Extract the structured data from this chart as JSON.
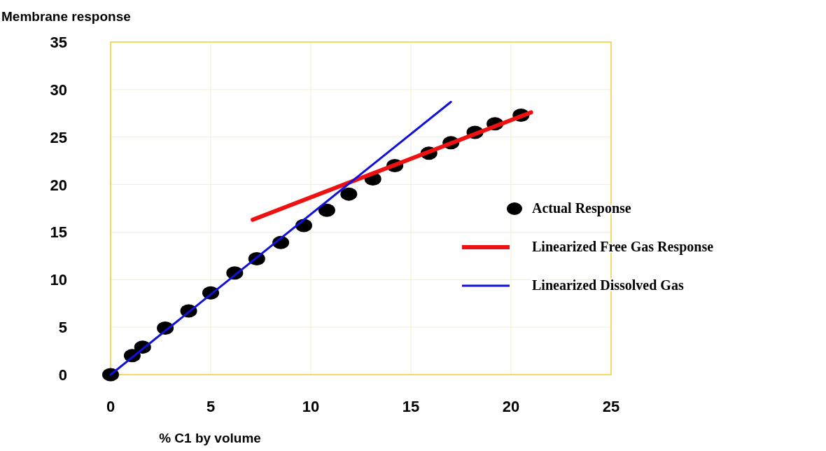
{
  "chart_data": {
    "type": "scatter",
    "ylabel": "Membrane response",
    "xlabel": "% C1 by volume",
    "xlim": [
      0,
      25
    ],
    "xticks": [
      0,
      5,
      10,
      15,
      20,
      25
    ],
    "ylim": [
      0,
      35
    ],
    "yticks": [
      0,
      5,
      10,
      15,
      20,
      25,
      30,
      35
    ],
    "grid": true,
    "legend": "right",
    "series": [
      {
        "name": "Actual Response",
        "marker": "circle",
        "color": "#000000",
        "x": [
          0,
          1.08,
          1.6,
          2.73,
          3.9,
          5.0,
          6.2,
          7.3,
          8.5,
          9.65,
          10.8,
          11.9,
          13.1,
          14.2,
          15.9,
          17.0,
          18.2,
          19.2,
          20.5
        ],
        "values": [
          0,
          2.0,
          2.9,
          4.9,
          6.7,
          8.6,
          10.7,
          12.2,
          13.9,
          15.7,
          17.3,
          19.0,
          20.6,
          22.0,
          23.3,
          24.4,
          25.5,
          26.4,
          27.3
        ]
      },
      {
        "name": "Linearized Free Gas Response",
        "type": "line",
        "marker": "none",
        "color": "#ee1111",
        "x": [
          7.1,
          21.0
        ],
        "values": [
          16.3,
          27.6
        ]
      },
      {
        "name": "Linearized Dissolved Gas",
        "type": "line",
        "marker": "none",
        "color": "#1111dd",
        "x": [
          0,
          17.0
        ],
        "values": [
          0,
          28.7
        ]
      }
    ]
  }
}
